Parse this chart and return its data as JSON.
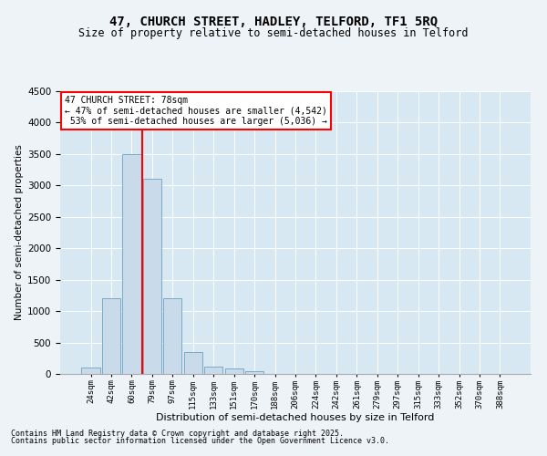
{
  "title1": "47, CHURCH STREET, HADLEY, TELFORD, TF1 5RQ",
  "title2": "Size of property relative to semi-detached houses in Telford",
  "xlabel": "Distribution of semi-detached houses by size in Telford",
  "ylabel": "Number of semi-detached properties",
  "bar_labels": [
    "24sqm",
    "42sqm",
    "60sqm",
    "79sqm",
    "97sqm",
    "115sqm",
    "133sqm",
    "151sqm",
    "170sqm",
    "188sqm",
    "206sqm",
    "224sqm",
    "242sqm",
    "261sqm",
    "279sqm",
    "297sqm",
    "315sqm",
    "333sqm",
    "352sqm",
    "370sqm",
    "388sqm"
  ],
  "bar_values": [
    100,
    1200,
    3500,
    3100,
    1200,
    350,
    120,
    80,
    50,
    5,
    3,
    2,
    1,
    0,
    0,
    0,
    0,
    0,
    0,
    0,
    0
  ],
  "bar_color": "#c9daea",
  "bar_edge_color": "#7aaac8",
  "vline_color": "red",
  "property_size": 78,
  "property_name": "47 CHURCH STREET",
  "pct_smaller": 47,
  "count_smaller": 4542,
  "pct_larger": 53,
  "count_larger": 5036,
  "ylim": [
    0,
    4500
  ],
  "yticks": [
    0,
    500,
    1000,
    1500,
    2000,
    2500,
    3000,
    3500,
    4000,
    4500
  ],
  "footer1": "Contains HM Land Registry data © Crown copyright and database right 2025.",
  "footer2": "Contains public sector information licensed under the Open Government Licence v3.0.",
  "bg_color": "#eef3f7",
  "plot_bg_color": "#d8e8f2",
  "grid_color": "#ffffff",
  "title1_fontsize": 10,
  "title2_fontsize": 8.5,
  "footer_fontsize": 6
}
